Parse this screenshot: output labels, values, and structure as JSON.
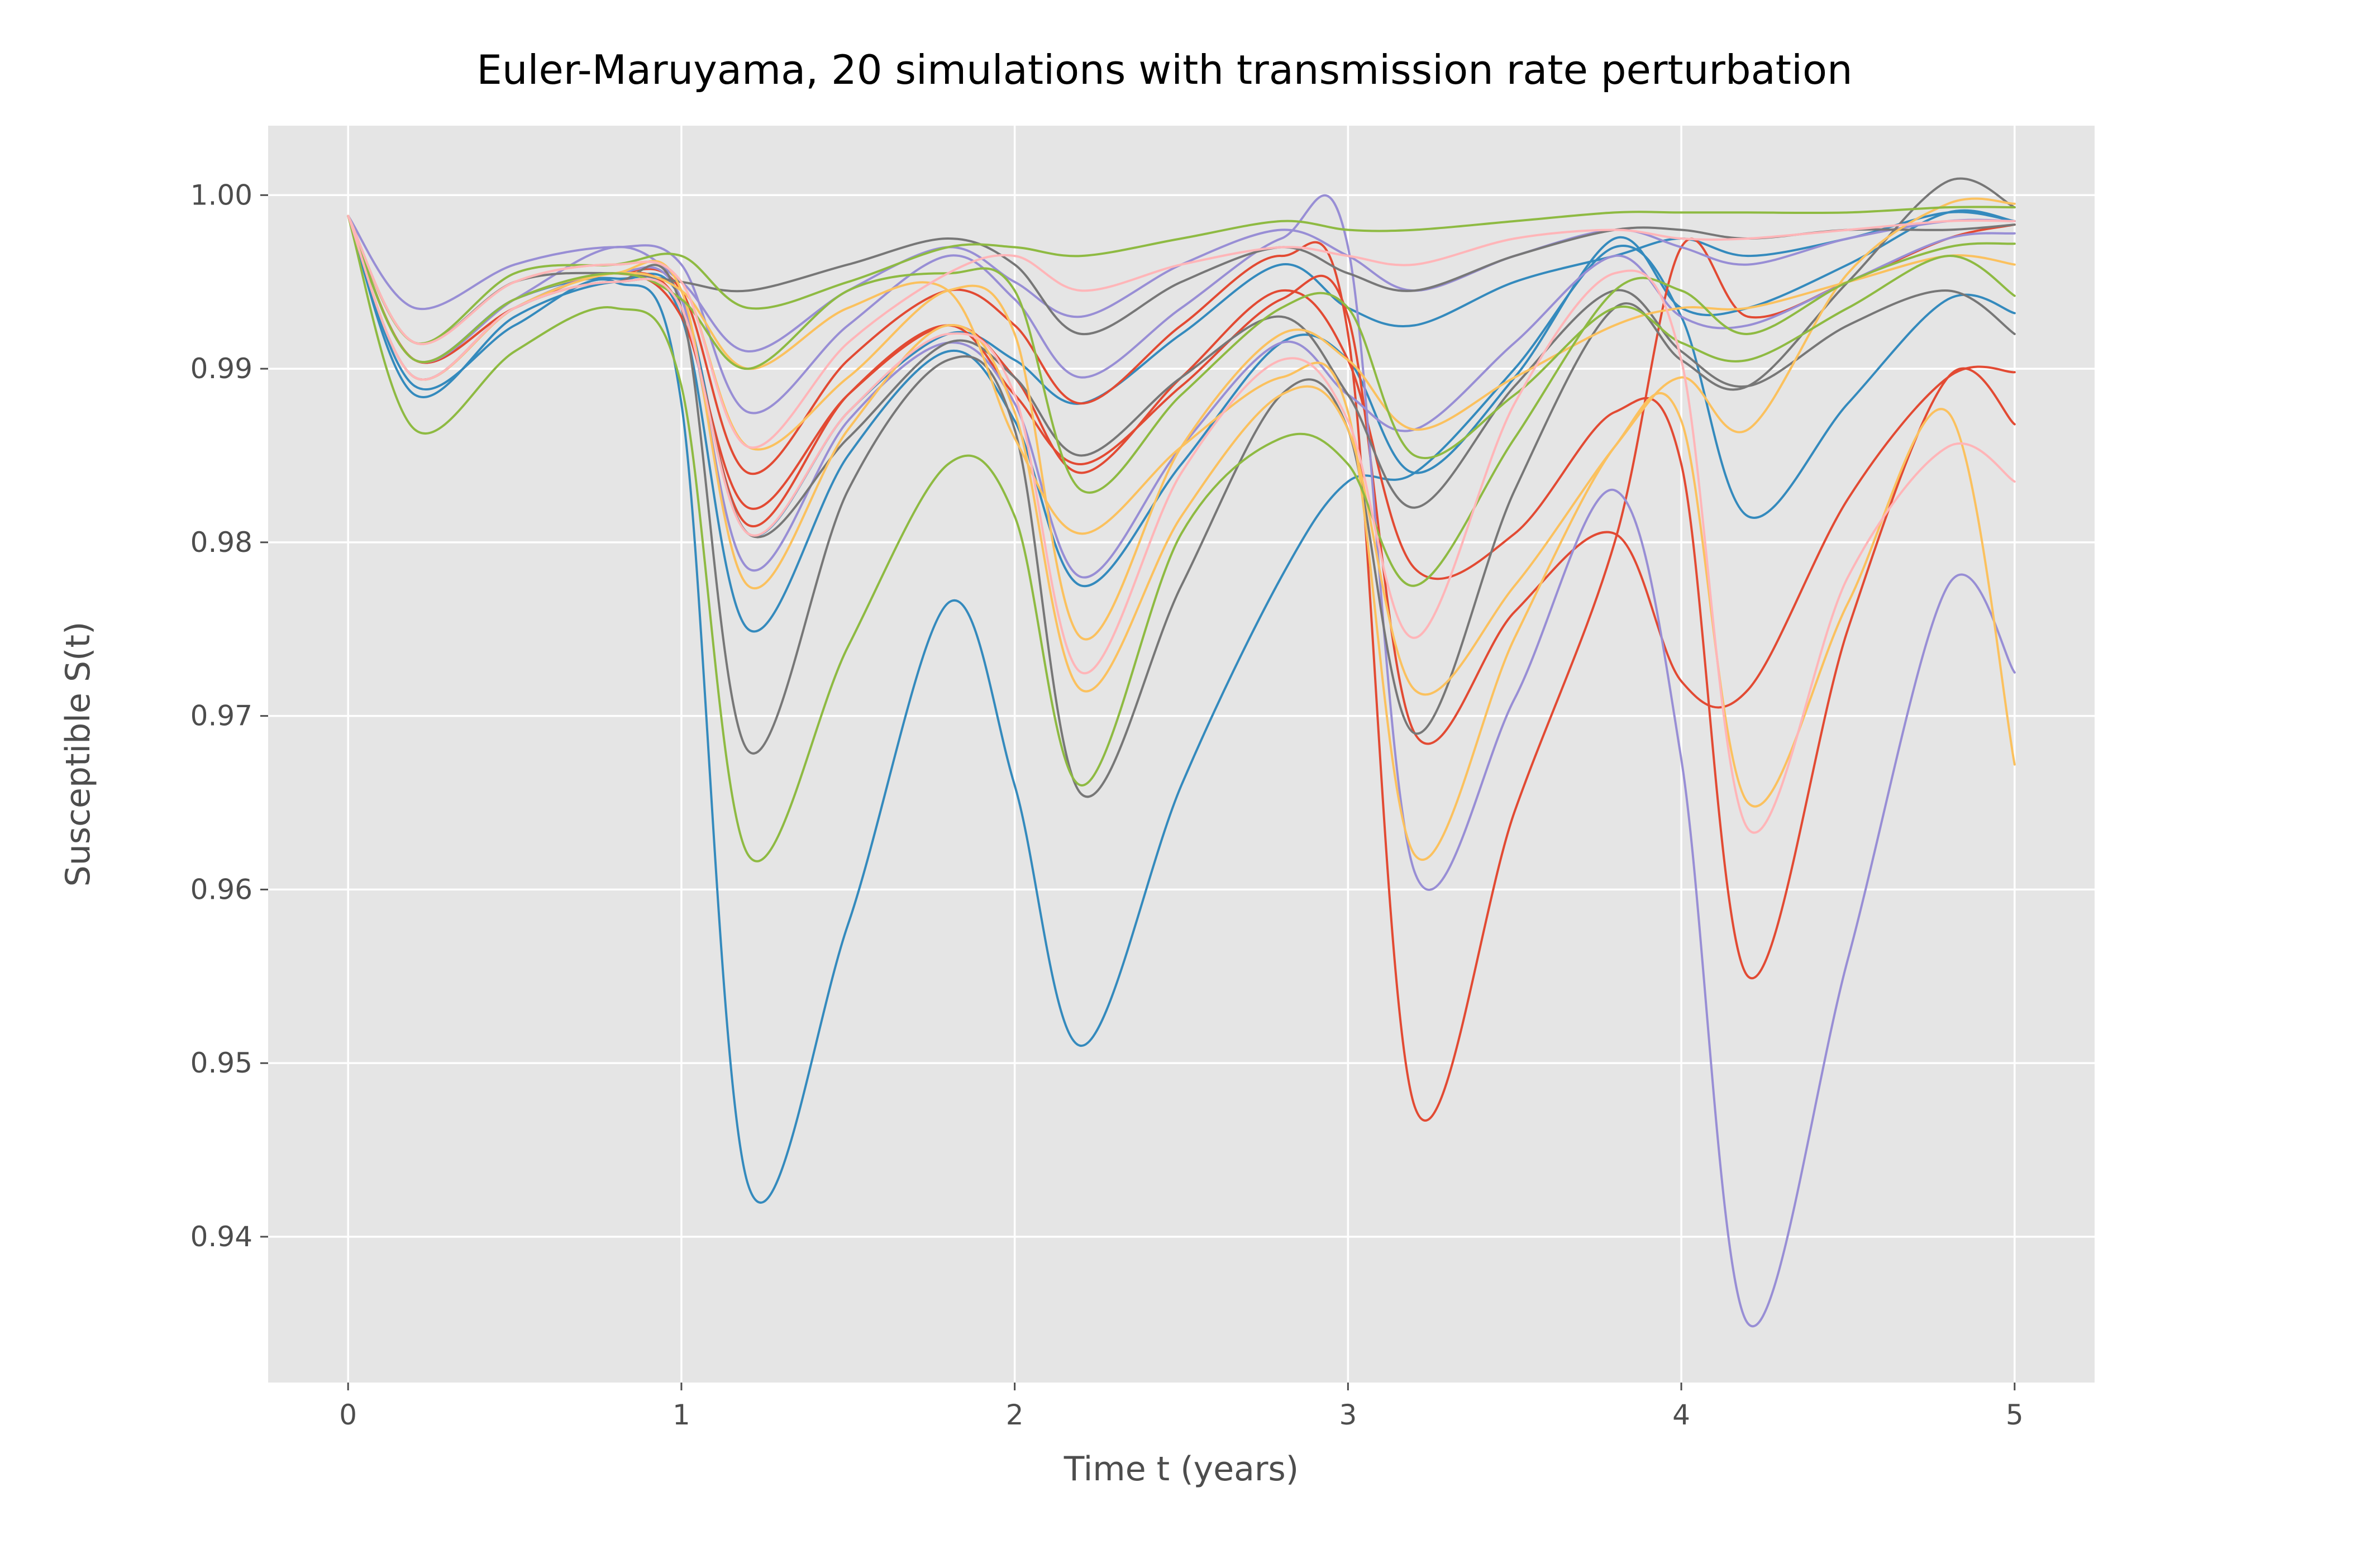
{
  "chart_data": {
    "type": "line",
    "title": "Euler-Maruyama, 20 simulations with transmission rate perturbation",
    "xlabel": "Time t (years)",
    "ylabel": "Susceptible S(t)",
    "xlim": [
      -0.24,
      5.24
    ],
    "ylim": [
      0.9316,
      1.004
    ],
    "xticks": [
      0,
      1,
      2,
      3,
      4,
      5
    ],
    "xtick_labels": [
      "0",
      "1",
      "2",
      "3",
      "4",
      "5"
    ],
    "yticks": [
      0.94,
      0.95,
      0.96,
      0.97,
      0.98,
      0.99,
      1.0
    ],
    "ytick_labels": [
      "0.94",
      "0.95",
      "0.96",
      "0.97",
      "0.98",
      "0.99",
      "1.00"
    ],
    "grid": true,
    "legend": "none",
    "background": "#e5e5e5",
    "x": [
      0,
      0.2,
      0.5,
      0.8,
      1.0,
      1.2,
      1.5,
      1.8,
      2.0,
      2.2,
      2.5,
      2.8,
      3.0,
      3.2,
      3.5,
      3.8,
      4.0,
      4.2,
      4.5,
      4.8,
      5.0
    ],
    "series": [
      {
        "color": "#348abd",
        "values": [
          0.9988,
          0.989,
          0.9925,
          0.995,
          0.988,
          0.943,
          0.958,
          0.9765,
          0.966,
          0.951,
          0.966,
          0.978,
          0.9835,
          0.984,
          0.99,
          0.997,
          0.993,
          0.9815,
          0.988,
          0.994,
          0.9932
        ]
      },
      {
        "color": "#348abd",
        "values": [
          0.9988,
          0.9905,
          0.994,
          0.9952,
          0.993,
          0.975,
          0.985,
          0.991,
          0.987,
          0.9775,
          0.9845,
          0.9915,
          0.9905,
          0.984,
          0.9895,
          0.9975,
          0.9935,
          0.9935,
          0.996,
          0.999,
          0.9985
        ]
      },
      {
        "color": "#348abd",
        "values": [
          0.9988,
          0.9885,
          0.993,
          0.995,
          0.994,
          0.9805,
          0.9875,
          0.992,
          0.9905,
          0.988,
          0.992,
          0.996,
          0.9935,
          0.9925,
          0.995,
          0.9965,
          0.9975,
          0.9965,
          0.9975,
          0.999,
          0.9985
        ]
      },
      {
        "color": "#e24a33",
        "values": [
          0.9988,
          0.9905,
          0.9935,
          0.9955,
          0.993,
          0.982,
          0.9885,
          0.9925,
          0.9895,
          0.984,
          0.9895,
          0.9945,
          0.9905,
          0.9785,
          0.9805,
          0.9875,
          0.9845,
          0.955,
          0.975,
          0.9895,
          0.9868
        ]
      },
      {
        "color": "#e24a33",
        "values": [
          0.9988,
          0.9905,
          0.9935,
          0.9955,
          0.9935,
          0.981,
          0.9885,
          0.9925,
          0.9885,
          0.9845,
          0.989,
          0.994,
          0.993,
          0.969,
          0.976,
          0.9805,
          0.972,
          0.9715,
          0.9825,
          0.9895,
          0.9898
        ]
      },
      {
        "color": "#e24a33",
        "values": [
          0.9988,
          0.9905,
          0.994,
          0.9955,
          0.9945,
          0.984,
          0.9905,
          0.9945,
          0.9925,
          0.988,
          0.9925,
          0.9965,
          0.992,
          0.9475,
          0.9645,
          0.98,
          0.997,
          0.993,
          0.995,
          0.9975,
          0.9983
        ]
      },
      {
        "color": "#988ed5",
        "values": [
          0.9988,
          0.9935,
          0.996,
          0.997,
          0.996,
          0.9875,
          0.9925,
          0.9965,
          0.994,
          0.9895,
          0.9935,
          0.9975,
          0.997,
          0.961,
          0.971,
          0.983,
          0.9675,
          0.935,
          0.956,
          0.9775,
          0.9725
        ]
      },
      {
        "color": "#988ed5",
        "values": [
          0.9988,
          0.9905,
          0.994,
          0.997,
          0.995,
          0.991,
          0.9945,
          0.997,
          0.995,
          0.993,
          0.996,
          0.998,
          0.9965,
          0.9945,
          0.9965,
          0.998,
          0.997,
          0.996,
          0.9975,
          0.9985,
          0.9985
        ]
      },
      {
        "color": "#988ed5",
        "values": [
          0.9988,
          0.9895,
          0.9935,
          0.9955,
          0.994,
          0.9785,
          0.987,
          0.9915,
          0.988,
          0.978,
          0.9855,
          0.9915,
          0.9885,
          0.9865,
          0.9915,
          0.9965,
          0.993,
          0.9925,
          0.995,
          0.9975,
          0.9978
        ]
      },
      {
        "color": "#777777",
        "values": [
          0.9988,
          0.9895,
          0.9935,
          0.995,
          0.9935,
          0.968,
          0.983,
          0.9905,
          0.9865,
          0.9655,
          0.9775,
          0.9885,
          0.9865,
          0.969,
          0.983,
          0.9935,
          0.9905,
          0.989,
          0.995,
          1.0008,
          0.9993
        ]
      },
      {
        "color": "#777777",
        "values": [
          0.9988,
          0.9915,
          0.995,
          0.9955,
          0.995,
          0.9945,
          0.996,
          0.9975,
          0.996,
          0.992,
          0.995,
          0.997,
          0.9955,
          0.9945,
          0.9965,
          0.998,
          0.998,
          0.9975,
          0.998,
          0.998,
          0.9983
        ]
      },
      {
        "color": "#777777",
        "values": [
          0.9988,
          0.9895,
          0.9935,
          0.995,
          0.9935,
          0.9805,
          0.986,
          0.9915,
          0.9895,
          0.985,
          0.9895,
          0.993,
          0.9885,
          0.982,
          0.989,
          0.9945,
          0.991,
          0.989,
          0.9925,
          0.9945,
          0.992
        ]
      },
      {
        "color": "#fbc15e",
        "values": [
          0.9988,
          0.9895,
          0.9935,
          0.9955,
          0.9945,
          0.9775,
          0.9865,
          0.9925,
          0.9875,
          0.9715,
          0.9815,
          0.9885,
          0.9865,
          0.9715,
          0.9775,
          0.9855,
          0.9895,
          0.9865,
          0.9955,
          0.9995,
          0.9995
        ]
      },
      {
        "color": "#fbc15e",
        "values": [
          0.9988,
          0.9905,
          0.994,
          0.9955,
          0.9945,
          0.99,
          0.9935,
          0.9945,
          0.986,
          0.9805,
          0.9855,
          0.9895,
          0.9875,
          0.962,
          0.9745,
          0.9855,
          0.987,
          0.965,
          0.9765,
          0.9875,
          0.9672
        ]
      },
      {
        "color": "#fbc15e",
        "values": [
          0.9988,
          0.9915,
          0.995,
          0.996,
          0.995,
          0.9855,
          0.9895,
          0.9945,
          0.992,
          0.9745,
          0.9855,
          0.992,
          0.9905,
          0.9865,
          0.9895,
          0.9925,
          0.9935,
          0.9935,
          0.995,
          0.9965,
          0.996
        ]
      },
      {
        "color": "#8eba42",
        "values": [
          0.9988,
          0.9865,
          0.991,
          0.9935,
          0.989,
          0.962,
          0.974,
          0.9845,
          0.9815,
          0.966,
          0.9805,
          0.986,
          0.9845,
          0.9775,
          0.986,
          0.9945,
          0.9945,
          0.992,
          0.995,
          0.997,
          0.9972
        ]
      },
      {
        "color": "#8eba42",
        "values": [
          0.9988,
          0.9915,
          0.9955,
          0.996,
          0.9965,
          0.9935,
          0.995,
          0.997,
          0.997,
          0.9965,
          0.9975,
          0.9985,
          0.998,
          0.998,
          0.9985,
          0.999,
          0.999,
          0.999,
          0.999,
          0.9993,
          0.9993
        ]
      },
      {
        "color": "#8eba42",
        "values": [
          0.9988,
          0.9905,
          0.994,
          0.9955,
          0.994,
          0.99,
          0.9945,
          0.9955,
          0.9945,
          0.983,
          0.9885,
          0.9935,
          0.9935,
          0.985,
          0.9885,
          0.9935,
          0.9915,
          0.9905,
          0.9935,
          0.9965,
          0.9942
        ]
      },
      {
        "color": "#ffb5b8",
        "values": [
          0.9988,
          0.9915,
          0.995,
          0.996,
          0.995,
          0.9855,
          0.9915,
          0.9955,
          0.9965,
          0.9945,
          0.996,
          0.997,
          0.9965,
          0.996,
          0.9975,
          0.998,
          0.9975,
          0.9975,
          0.998,
          0.9985,
          0.9985
        ]
      },
      {
        "color": "#ffb5b8",
        "values": [
          0.9988,
          0.9895,
          0.9935,
          0.995,
          0.9935,
          0.9805,
          0.9875,
          0.992,
          0.9885,
          0.9725,
          0.984,
          0.9905,
          0.987,
          0.9745,
          0.988,
          0.9955,
          0.9905,
          0.9635,
          0.978,
          0.9855,
          0.9835
        ]
      }
    ]
  }
}
